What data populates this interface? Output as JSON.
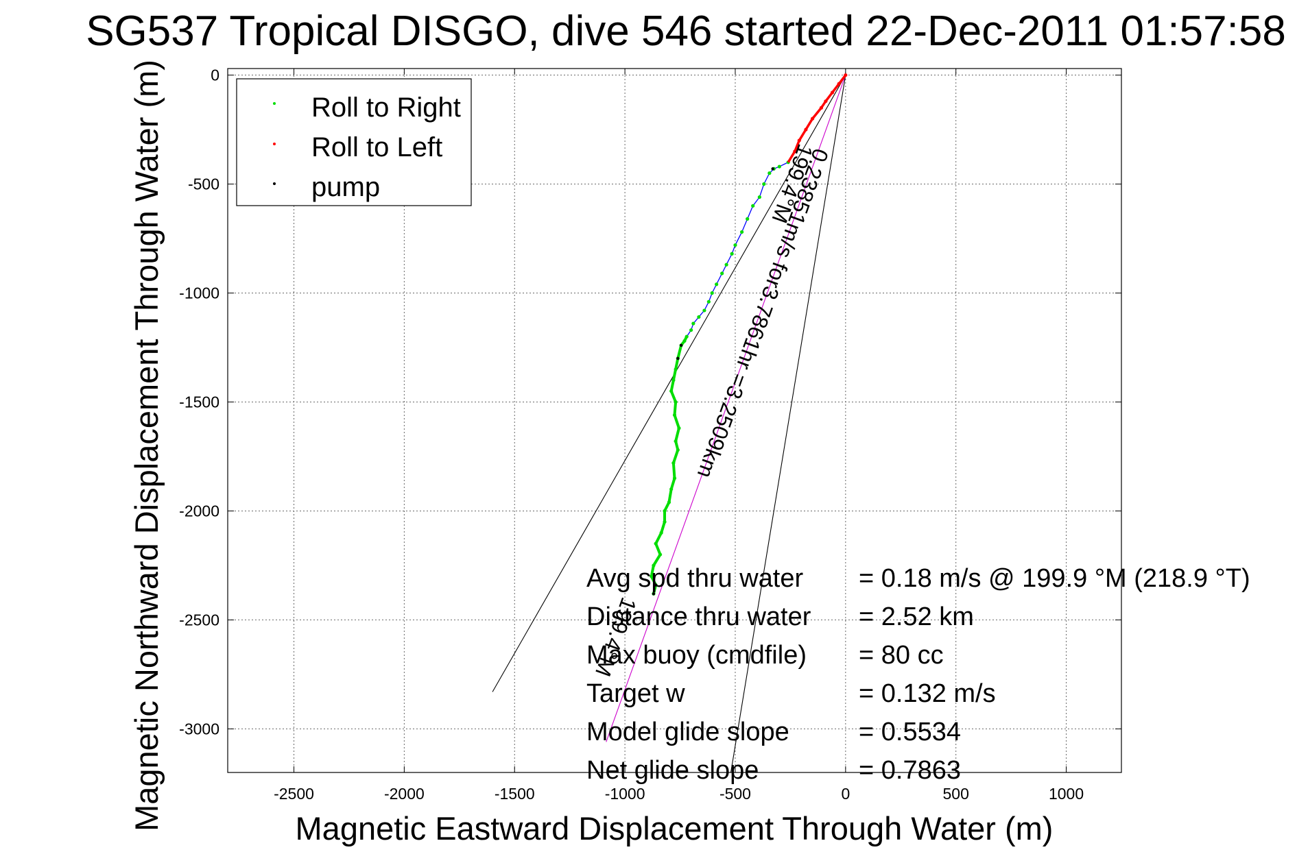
{
  "chart_data": {
    "type": "line",
    "title": "SG537 Tropical DISGO, dive 546 started 22-Dec-2011 01:57:58",
    "xlabel": "Magnetic Eastward Displacement Through Water (m)",
    "ylabel": "Magnetic Northward Displacement Through Water (m)",
    "xlim": [
      -2800,
      1250
    ],
    "ylim": [
      -3200,
      30
    ],
    "xticks": [
      -2500,
      -2000,
      -1500,
      -1000,
      -500,
      0,
      500,
      1000
    ],
    "yticks": [
      0,
      -500,
      -1000,
      -1500,
      -2000,
      -2500,
      -3000
    ],
    "grid": true,
    "legend_position": "top-left",
    "series": [
      {
        "name": "Roll to Right",
        "color": "#00dd00"
      },
      {
        "name": "Roll to Left",
        "color": "#ff0000"
      },
      {
        "name": "pump",
        "color": "#000000"
      }
    ],
    "track": {
      "color": "#0000ff",
      "x": [
        0,
        -30,
        -60,
        -90,
        -110,
        -150,
        -180,
        -210,
        -230,
        -260,
        -300,
        -325,
        -345,
        -370,
        -390,
        -420,
        -445,
        -470,
        -500,
        -515,
        -540,
        -560,
        -585,
        -605,
        -620,
        -640,
        -665,
        -690,
        -700,
        -720,
        -730,
        -745,
        -760,
        -770,
        -780,
        -790,
        -770,
        -775,
        -755,
        -770,
        -760,
        -780,
        -775,
        -790,
        -800,
        -820,
        -820,
        -835,
        -860,
        -840,
        -870,
        -880,
        -860,
        -870
      ],
      "y": [
        0,
        -40,
        -80,
        -120,
        -150,
        -200,
        -250,
        -300,
        -350,
        -400,
        -420,
        -430,
        -450,
        -500,
        -560,
        -600,
        -660,
        -720,
        -780,
        -820,
        -870,
        -910,
        -960,
        -1000,
        -1040,
        -1080,
        -1110,
        -1140,
        -1170,
        -1200,
        -1220,
        -1240,
        -1300,
        -1350,
        -1400,
        -1450,
        -1500,
        -1560,
        -1620,
        -1680,
        -1720,
        -1780,
        -1850,
        -1900,
        -1960,
        -2000,
        -2050,
        -2100,
        -2150,
        -2200,
        -2250,
        -2300,
        -2340,
        -2380
      ]
    },
    "heading_lines": [
      {
        "from": [
          0,
          0
        ],
        "to": [
          -1600,
          -2830
        ]
      },
      {
        "from": [
          0,
          0
        ],
        "to": [
          -520,
          -3200
        ]
      },
      {
        "from": [
          0,
          0
        ],
        "to": [
          -1085,
          -3060
        ],
        "color": "#cc00cc"
      }
    ],
    "annotations": [
      {
        "text": "0.23851m/s for3.7861hr =3.2509km",
        "x": -140,
        "y": -330
      },
      {
        "text": "199.4°M",
        "x": -210,
        "y": -310
      },
      {
        "text": "199.4°M",
        "x": -1010,
        "y": -2390
      }
    ],
    "stats": [
      {
        "label": "Avg spd thru water",
        "value": "=  0.18 m/s @ 199.9 °M (218.9 °T)"
      },
      {
        "label": "Distance thru water",
        "value": "=  2.52 km"
      },
      {
        "label": "Max buoy (cmdfile)",
        "value": "= 80 cc"
      },
      {
        "label": "Target w",
        "value": "= 0.132 m/s"
      },
      {
        "label": "Model glide slope",
        "value": "= 0.5534"
      },
      {
        "label": "Net glide slope",
        "value": "= 0.7863"
      }
    ]
  }
}
